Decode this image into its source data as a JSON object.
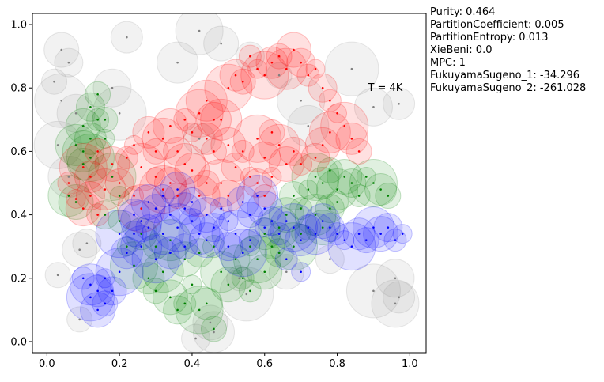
{
  "metrics": [
    "Purity: 0.464",
    "PartitionCoefficient: 0.005",
    "PartitionEntropy: 0.013",
    "XieBeni: 0.0",
    "MPC: 1",
    "FukuyamaSugeno_1: -34.296",
    "FukuyamaSugeno_2: -261.028"
  ],
  "annotation": "T = 4K",
  "chart_data": {
    "type": "scatter",
    "title": "",
    "xlabel": "",
    "ylabel": "",
    "xlim": [
      -0.04,
      1.045
    ],
    "ylim": [
      -0.035,
      1.035
    ],
    "x_ticks": [
      "0.0",
      "0.2",
      "0.4",
      "0.6",
      "0.8",
      "1.0"
    ],
    "y_ticks": [
      "0.0",
      "0.2",
      "0.4",
      "0.6",
      "0.8",
      "1.0"
    ],
    "grid": false,
    "legend": "none",
    "annotation_position": [
      0.9,
      0.8
    ],
    "series": [
      {
        "color": "#ff0000",
        "points": [
          [
            0.06,
            0.5
          ],
          [
            0.08,
            0.45
          ],
          [
            0.1,
            0.55
          ],
          [
            0.12,
            0.52
          ],
          [
            0.14,
            0.6
          ],
          [
            0.16,
            0.48
          ],
          [
            0.18,
            0.56
          ],
          [
            0.2,
            0.5
          ],
          [
            0.22,
            0.58
          ],
          [
            0.24,
            0.62
          ],
          [
            0.26,
            0.55
          ],
          [
            0.28,
            0.66
          ],
          [
            0.3,
            0.6
          ],
          [
            0.32,
            0.64
          ],
          [
            0.34,
            0.68
          ],
          [
            0.36,
            0.6
          ],
          [
            0.38,
            0.7
          ],
          [
            0.4,
            0.66
          ],
          [
            0.42,
            0.72
          ],
          [
            0.44,
            0.64
          ],
          [
            0.46,
            0.6
          ],
          [
            0.48,
            0.7
          ],
          [
            0.5,
            0.62
          ],
          [
            0.52,
            0.55
          ],
          [
            0.54,
            0.6
          ],
          [
            0.56,
            0.52
          ],
          [
            0.58,
            0.64
          ],
          [
            0.6,
            0.58
          ],
          [
            0.62,
            0.66
          ],
          [
            0.64,
            0.62
          ],
          [
            0.66,
            0.56
          ],
          [
            0.68,
            0.6
          ],
          [
            0.56,
            0.9
          ],
          [
            0.58,
            0.86
          ],
          [
            0.6,
            0.84
          ],
          [
            0.62,
            0.88
          ],
          [
            0.64,
            0.9
          ],
          [
            0.66,
            0.86
          ],
          [
            0.68,
            0.92
          ],
          [
            0.7,
            0.88
          ],
          [
            0.72,
            0.84
          ],
          [
            0.74,
            0.86
          ],
          [
            0.5,
            0.8
          ],
          [
            0.52,
            0.84
          ],
          [
            0.54,
            0.82
          ],
          [
            0.44,
            0.76
          ],
          [
            0.46,
            0.7
          ],
          [
            0.76,
            0.8
          ],
          [
            0.78,
            0.76
          ],
          [
            0.8,
            0.72
          ],
          [
            0.82,
            0.68
          ],
          [
            0.84,
            0.64
          ],
          [
            0.86,
            0.6
          ],
          [
            0.78,
            0.66
          ],
          [
            0.76,
            0.62
          ],
          [
            0.74,
            0.58
          ],
          [
            0.7,
            0.56
          ],
          [
            0.3,
            0.52
          ],
          [
            0.32,
            0.48
          ],
          [
            0.34,
            0.5
          ],
          [
            0.36,
            0.46
          ],
          [
            0.38,
            0.56
          ],
          [
            0.4,
            0.54
          ],
          [
            0.58,
            0.5
          ],
          [
            0.6,
            0.46
          ],
          [
            0.62,
            0.52
          ],
          [
            0.48,
            0.5
          ],
          [
            0.5,
            0.46
          ],
          [
            0.44,
            0.5
          ],
          [
            0.42,
            0.46
          ],
          [
            0.1,
            0.42
          ],
          [
            0.12,
            0.46
          ],
          [
            0.14,
            0.4
          ],
          [
            0.24,
            0.46
          ],
          [
            0.26,
            0.42
          ]
        ]
      },
      {
        "color": "#008000",
        "points": [
          [
            0.08,
            0.62
          ],
          [
            0.1,
            0.68
          ],
          [
            0.12,
            0.74
          ],
          [
            0.14,
            0.7
          ],
          [
            0.16,
            0.64
          ],
          [
            0.12,
            0.58
          ],
          [
            0.1,
            0.56
          ],
          [
            0.14,
            0.78
          ],
          [
            0.06,
            0.46
          ],
          [
            0.08,
            0.44
          ],
          [
            0.16,
            0.4
          ],
          [
            0.2,
            0.38
          ],
          [
            0.22,
            0.3
          ],
          [
            0.24,
            0.24
          ],
          [
            0.28,
            0.2
          ],
          [
            0.3,
            0.16
          ],
          [
            0.32,
            0.22
          ],
          [
            0.34,
            0.14
          ],
          [
            0.36,
            0.1
          ],
          [
            0.38,
            0.12
          ],
          [
            0.4,
            0.18
          ],
          [
            0.42,
            0.1
          ],
          [
            0.44,
            0.12
          ],
          [
            0.46,
            0.04
          ],
          [
            0.48,
            0.22
          ],
          [
            0.5,
            0.18
          ],
          [
            0.52,
            0.26
          ],
          [
            0.54,
            0.2
          ],
          [
            0.56,
            0.3
          ],
          [
            0.58,
            0.26
          ],
          [
            0.6,
            0.34
          ],
          [
            0.62,
            0.3
          ],
          [
            0.64,
            0.36
          ],
          [
            0.66,
            0.4
          ],
          [
            0.68,
            0.46
          ],
          [
            0.7,
            0.42
          ],
          [
            0.72,
            0.48
          ],
          [
            0.74,
            0.52
          ],
          [
            0.76,
            0.5
          ],
          [
            0.78,
            0.54
          ],
          [
            0.8,
            0.48
          ],
          [
            0.82,
            0.52
          ],
          [
            0.84,
            0.5
          ],
          [
            0.86,
            0.46
          ],
          [
            0.88,
            0.52
          ],
          [
            0.9,
            0.5
          ],
          [
            0.92,
            0.48
          ],
          [
            0.94,
            0.46
          ],
          [
            0.74,
            0.4
          ],
          [
            0.76,
            0.36
          ],
          [
            0.78,
            0.42
          ],
          [
            0.8,
            0.44
          ],
          [
            0.7,
            0.34
          ],
          [
            0.68,
            0.3
          ],
          [
            0.26,
            0.34
          ],
          [
            0.3,
            0.3
          ],
          [
            0.34,
            0.32
          ],
          [
            0.38,
            0.26
          ],
          [
            0.42,
            0.28
          ],
          [
            0.46,
            0.3
          ],
          [
            0.2,
            0.46
          ],
          [
            0.18,
            0.52
          ],
          [
            0.12,
            0.64
          ],
          [
            0.16,
            0.7
          ],
          [
            0.1,
            0.6
          ],
          [
            0.6,
            0.22
          ],
          [
            0.64,
            0.28
          ],
          [
            0.56,
            0.16
          ]
        ]
      },
      {
        "color": "#0000ff",
        "points": [
          [
            0.12,
            0.14
          ],
          [
            0.14,
            0.16
          ],
          [
            0.16,
            0.12
          ],
          [
            0.12,
            0.18
          ],
          [
            0.14,
            0.1
          ],
          [
            0.18,
            0.16
          ],
          [
            0.1,
            0.2
          ],
          [
            0.16,
            0.2
          ],
          [
            0.2,
            0.22
          ],
          [
            0.22,
            0.28
          ],
          [
            0.24,
            0.34
          ],
          [
            0.26,
            0.38
          ],
          [
            0.28,
            0.44
          ],
          [
            0.3,
            0.42
          ],
          [
            0.32,
            0.46
          ],
          [
            0.34,
            0.4
          ],
          [
            0.36,
            0.36
          ],
          [
            0.38,
            0.42
          ],
          [
            0.4,
            0.38
          ],
          [
            0.42,
            0.34
          ],
          [
            0.44,
            0.4
          ],
          [
            0.46,
            0.36
          ],
          [
            0.48,
            0.42
          ],
          [
            0.5,
            0.38
          ],
          [
            0.52,
            0.34
          ],
          [
            0.54,
            0.44
          ],
          [
            0.56,
            0.4
          ],
          [
            0.58,
            0.46
          ],
          [
            0.6,
            0.42
          ],
          [
            0.62,
            0.38
          ],
          [
            0.64,
            0.34
          ],
          [
            0.66,
            0.38
          ],
          [
            0.68,
            0.36
          ],
          [
            0.7,
            0.32
          ],
          [
            0.72,
            0.36
          ],
          [
            0.74,
            0.34
          ],
          [
            0.76,
            0.38
          ],
          [
            0.78,
            0.36
          ],
          [
            0.8,
            0.34
          ],
          [
            0.82,
            0.32
          ],
          [
            0.84,
            0.3
          ],
          [
            0.86,
            0.34
          ],
          [
            0.88,
            0.32
          ],
          [
            0.9,
            0.36
          ],
          [
            0.92,
            0.34
          ],
          [
            0.94,
            0.36
          ],
          [
            0.96,
            0.32
          ],
          [
            0.98,
            0.34
          ],
          [
            0.3,
            0.26
          ],
          [
            0.34,
            0.28
          ],
          [
            0.38,
            0.3
          ],
          [
            0.26,
            0.3
          ],
          [
            0.44,
            0.32
          ],
          [
            0.5,
            0.3
          ],
          [
            0.56,
            0.32
          ],
          [
            0.6,
            0.36
          ],
          [
            0.2,
            0.34
          ],
          [
            0.24,
            0.4
          ],
          [
            0.28,
            0.36
          ],
          [
            0.32,
            0.34
          ],
          [
            0.36,
            0.48
          ],
          [
            0.4,
            0.44
          ],
          [
            0.66,
            0.26
          ],
          [
            0.7,
            0.22
          ],
          [
            0.54,
            0.28
          ]
        ]
      },
      {
        "color": "#808080",
        "points": [
          [
            0.04,
            0.92
          ],
          [
            0.06,
            0.88
          ],
          [
            0.02,
            0.82
          ],
          [
            0.04,
            0.76
          ],
          [
            0.08,
            0.72
          ],
          [
            0.22,
            0.96
          ],
          [
            0.42,
            0.98
          ],
          [
            0.36,
            0.88
          ],
          [
            0.48,
            0.94
          ],
          [
            0.56,
            0.9
          ],
          [
            0.64,
            0.84
          ],
          [
            0.84,
            0.86
          ],
          [
            0.9,
            0.74
          ],
          [
            0.97,
            0.75
          ],
          [
            0.03,
            0.62
          ],
          [
            0.06,
            0.52
          ],
          [
            0.09,
            0.29
          ],
          [
            0.11,
            0.31
          ],
          [
            0.03,
            0.21
          ],
          [
            0.9,
            0.16
          ],
          [
            0.96,
            0.2
          ],
          [
            0.97,
            0.14
          ],
          [
            0.96,
            0.12
          ],
          [
            0.46,
            0.03
          ],
          [
            0.45,
            0.06
          ],
          [
            0.41,
            0.01
          ],
          [
            0.09,
            0.07
          ],
          [
            0.2,
            0.72
          ],
          [
            0.18,
            0.8
          ],
          [
            0.42,
            0.64
          ],
          [
            0.7,
            0.76
          ],
          [
            0.72,
            0.68
          ],
          [
            0.66,
            0.22
          ],
          [
            0.78,
            0.26
          ],
          [
            0.53,
            0.2
          ],
          [
            0.55,
            0.15
          ]
        ]
      }
    ]
  }
}
